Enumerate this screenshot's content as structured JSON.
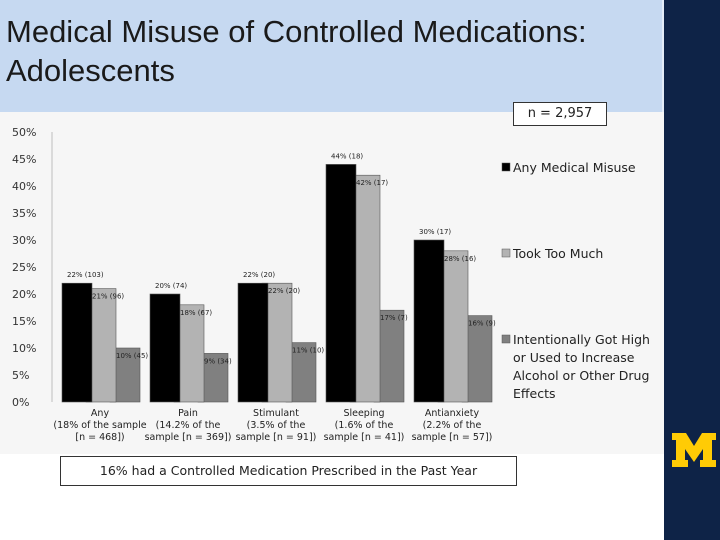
{
  "title_lines": [
    "Medical Misuse of Controlled Medications:",
    "Adolescents"
  ],
  "sample_note": "n = 2,957",
  "footnote": "16% had a Controlled Medication Prescribed in the Past Year",
  "colors": {
    "title_band": "#c6d9f1",
    "sidebar": "#0e2347",
    "logo": "#ffcb05"
  },
  "chart_data": {
    "type": "bar",
    "categories": [
      [
        "Any",
        "(18% of the sample",
        "[n = 468])"
      ],
      [
        "Pain",
        "(14.2% of the",
        "sample [n = 369])"
      ],
      [
        "Stimulant",
        "(3.5% of the",
        "sample [n = 91])"
      ],
      [
        "Sleeping",
        "(1.6% of the",
        "sample [n = 41])"
      ],
      [
        "Antianxiety",
        "(2.2% of the",
        "sample [n = 57])"
      ]
    ],
    "y_ticks": [
      "0%",
      "5%",
      "10%",
      "15%",
      "20%",
      "25%",
      "30%",
      "35%",
      "40%",
      "45%",
      "50%"
    ],
    "ylim": [
      0,
      50
    ],
    "grid": false,
    "legend_position": "right",
    "series": [
      {
        "name": "Any Medical Misuse",
        "color": "#000000",
        "values": [
          22,
          20,
          22,
          44,
          30
        ],
        "labels": [
          "22% (103)",
          "20% (74)",
          "22% (20)",
          "44% (18)",
          "30% (17)"
        ]
      },
      {
        "name": "Took Too Much",
        "color": "#b3b3b3",
        "values": [
          21,
          18,
          22,
          42,
          28
        ],
        "labels": [
          "21%    (96)",
          "18% (67)",
          "22% (20)",
          "42% (17)",
          "28% (16)"
        ]
      },
      {
        "name": [
          "Intentionally Got High",
          "or Used to Increase",
          "Alcohol or Other Drug",
          "Effects"
        ],
        "color": "#808080",
        "values": [
          10,
          9,
          11,
          17,
          16
        ],
        "labels": [
          "10%    (45)",
          "9% (34)",
          "11% (10)",
          "17% (7)",
          "16% (9)"
        ]
      }
    ]
  }
}
